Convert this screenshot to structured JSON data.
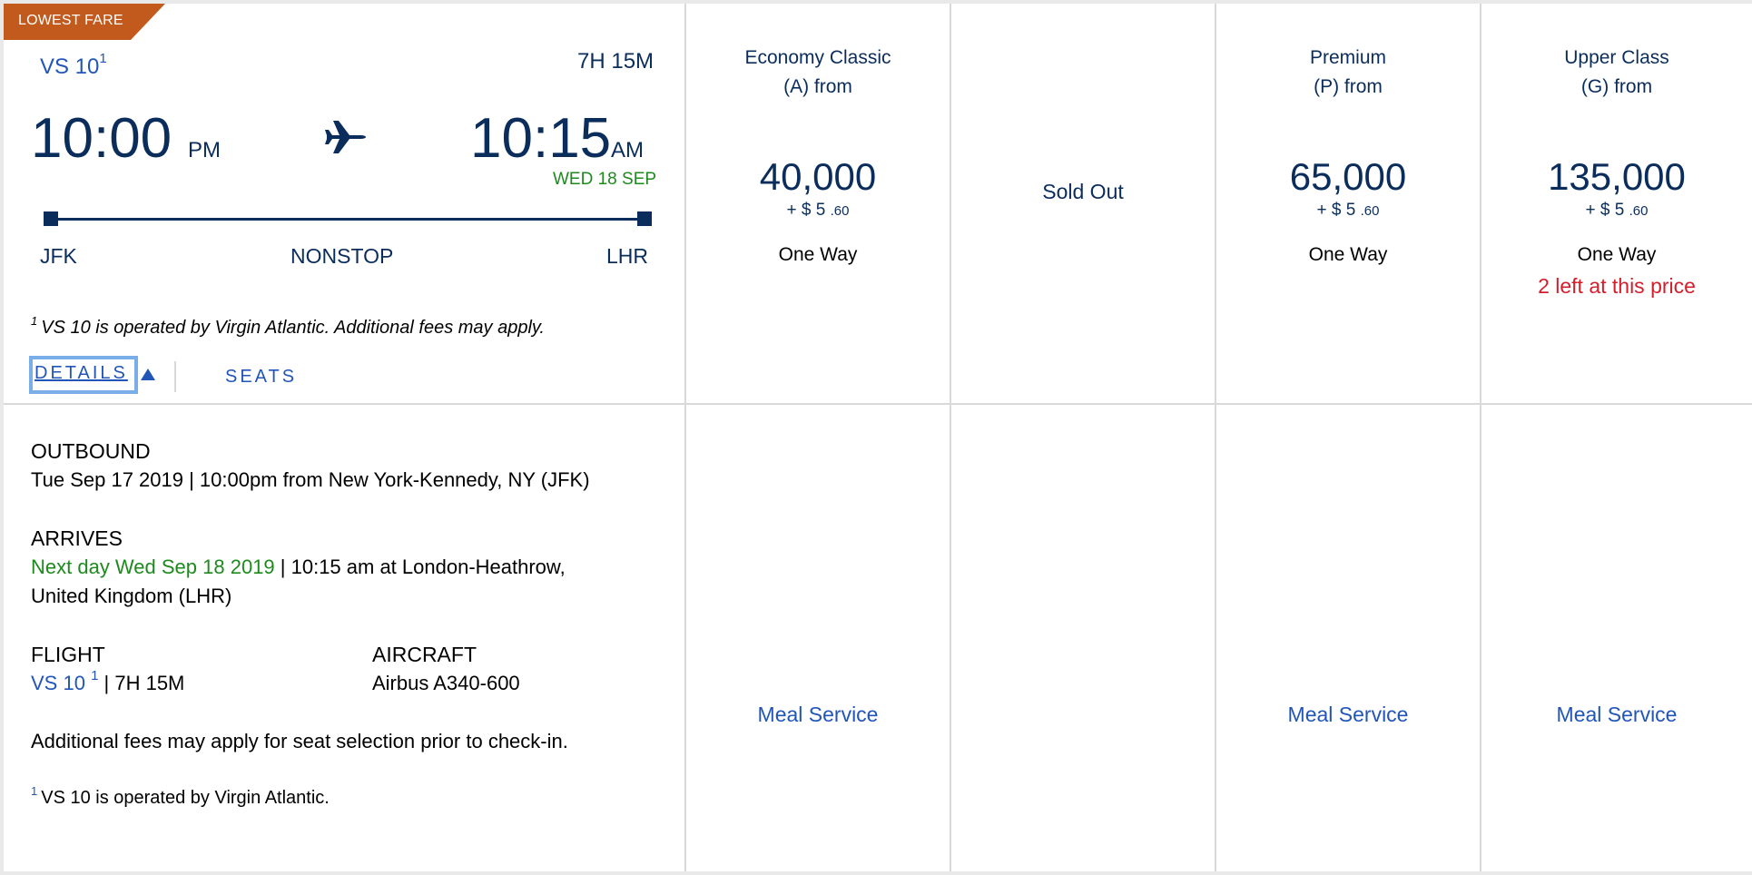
{
  "badge": {
    "label": "LOWEST FARE",
    "color": "#c25a1e"
  },
  "flight": {
    "number": "VS 10",
    "footnote_marker": "1",
    "duration": "7H 15M",
    "departure": {
      "time": "10:00",
      "ampm": "PM",
      "airport": "JFK"
    },
    "arrival": {
      "time": "10:15",
      "ampm": "AM",
      "date": "WED 18 SEP",
      "airport": "LHR"
    },
    "stops": "NONSTOP",
    "operated_note": "VS 10 is operated by Virgin Atlantic. Additional fees may apply."
  },
  "links": {
    "details": "DETAILS",
    "seats": "SEATS"
  },
  "fares": [
    {
      "class_line1": "Economy Classic",
      "class_line2": "(A) from",
      "price": "40,000",
      "fee_prefix": "+ $ 5",
      "fee_cents": ".60",
      "trip": "One Way",
      "alert": "",
      "meal": "Meal Service"
    },
    {
      "status": "Sold Out"
    },
    {
      "class_line1": "Premium",
      "class_line2": "(P) from",
      "price": "65,000",
      "fee_prefix": "+ $ 5",
      "fee_cents": ".60",
      "trip": "One Way",
      "alert": "",
      "meal": "Meal Service"
    },
    {
      "class_line1": "Upper Class",
      "class_line2": "(G) from",
      "price": "135,000",
      "fee_prefix": "+ $ 5",
      "fee_cents": ".60",
      "trip": "One Way",
      "alert": "2 left at this price",
      "meal": "Meal Service"
    }
  ],
  "details": {
    "outbound_label": "OUTBOUND",
    "outbound_text": "Tue Sep 17 2019 | 10:00pm from New York-Kennedy, NY (JFK)",
    "arrives_label": "ARRIVES",
    "arrives_date": "Next day Wed Sep 18 2019",
    "arrives_rest": " | 10:15 am at London-Heathrow,",
    "arrives_line2": "United Kingdom (LHR)",
    "flight_label": "FLIGHT",
    "flight_number": "VS 10",
    "flight_marker": "1",
    "flight_duration": " | 7H 15M",
    "aircraft_label": "AIRCRAFT",
    "aircraft_value": "Airbus A340-600",
    "fees_note": "Additional fees may apply for seat selection prior to check-in.",
    "footnote_marker": "1",
    "footnote_text": "VS 10 is operated by Virgin Atlantic."
  }
}
